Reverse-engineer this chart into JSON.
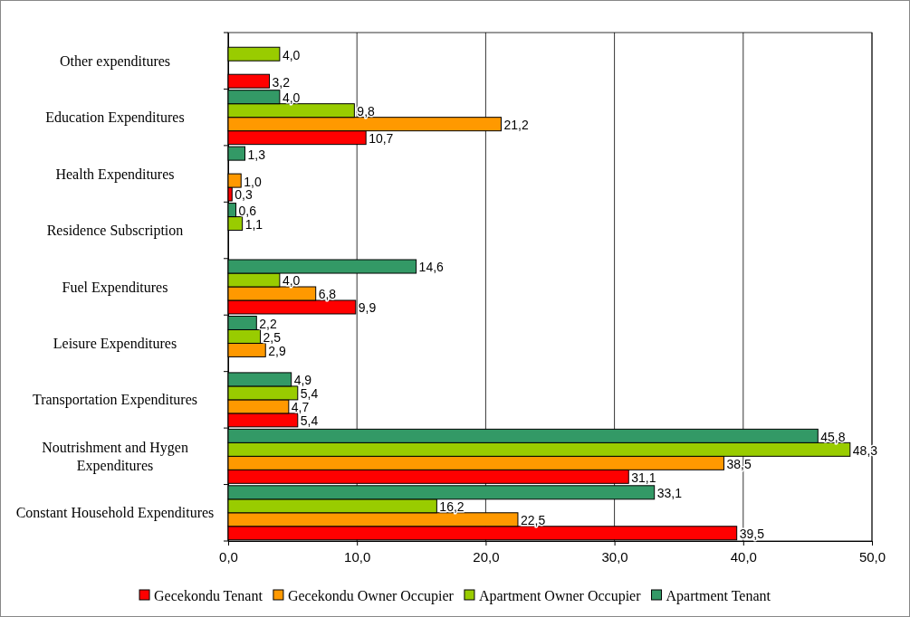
{
  "chart_data": {
    "type": "bar",
    "orientation": "horizontal",
    "categories": [
      "Other expenditures",
      "Education Expenditures",
      "Health Expenditures",
      "Residence Subscription",
      "Fuel Expenditures",
      "Leisure Expenditures",
      "Transportation Expenditures",
      "Noutrishment and Hygen Expenditures",
      "Constant Household Expenditures"
    ],
    "series": [
      {
        "name": "Gecekondu Tenant",
        "color": "#ff0000",
        "values": [
          3.2,
          10.7,
          0.3,
          null,
          9.9,
          null,
          5.4,
          31.1,
          39.5
        ],
        "value_labels": [
          "3,2",
          "10,7",
          "0,3",
          null,
          "9,9",
          null,
          "5,4",
          "31,1",
          "39,5"
        ]
      },
      {
        "name": "Gecekondu Owner Occupier",
        "color": "#ff9900",
        "values": [
          null,
          21.2,
          1.0,
          null,
          6.8,
          2.9,
          4.7,
          38.5,
          22.5
        ],
        "value_labels": [
          null,
          "21,2",
          "1,0",
          null,
          "6,8",
          "2,9",
          "4,7",
          "38,5",
          "22,5"
        ]
      },
      {
        "name": "Apartment Owner Occupier",
        "color": "#99cc00",
        "values": [
          4.0,
          9.8,
          null,
          1.1,
          4.0,
          2.5,
          5.4,
          48.3,
          16.2
        ],
        "value_labels": [
          "4,0",
          "9,8",
          null,
          "1,1",
          "4,0",
          "2,5",
          "5,4",
          "48,3",
          "16,2"
        ]
      },
      {
        "name": "Apartment Tenant",
        "color": "#339966",
        "values": [
          null,
          4.0,
          1.3,
          0.6,
          14.6,
          2.2,
          4.9,
          45.8,
          33.1
        ],
        "value_labels": [
          null,
          "4,0",
          "1,3",
          "0,6",
          "14,6",
          "2,2",
          "4,9",
          "45,8",
          "33,1"
        ]
      }
    ],
    "xlim": [
      0,
      50
    ],
    "xticks": [
      {
        "value": 0,
        "label": "0,0"
      },
      {
        "value": 10,
        "label": "10,0"
      },
      {
        "value": 20,
        "label": "20,0"
      },
      {
        "value": 30,
        "label": "30,0"
      },
      {
        "value": 40,
        "label": "40,0"
      },
      {
        "value": 50,
        "label": "50,0"
      }
    ],
    "grid": "x",
    "legend": "bottom"
  }
}
